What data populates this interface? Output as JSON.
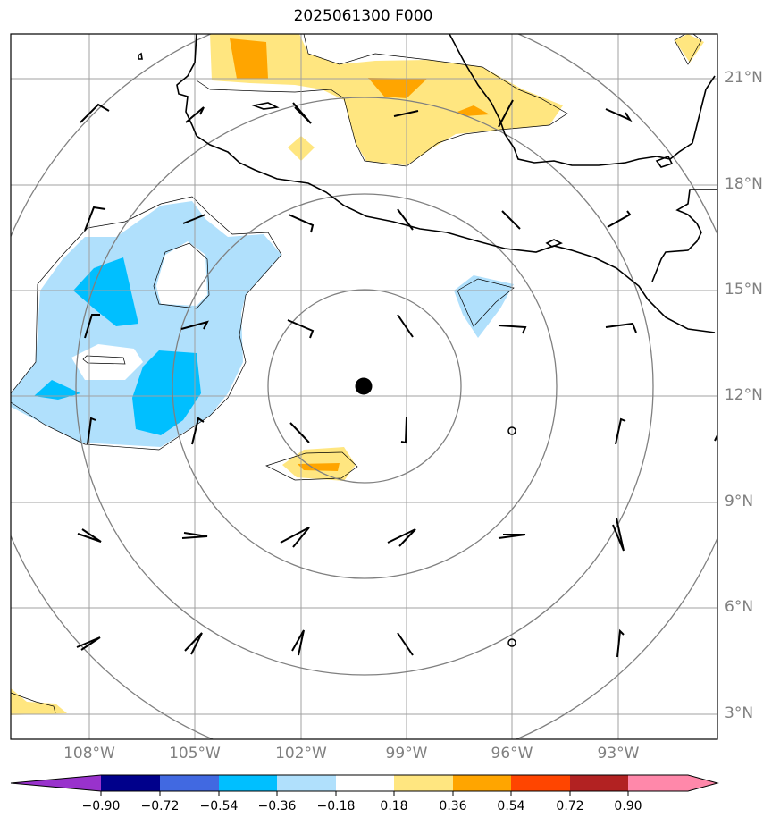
{
  "title": "2025061300 F000",
  "lat_labels": [
    "21°N",
    "18°N",
    "15°N",
    "12°N",
    "9°N",
    "6°N",
    "3°N"
  ],
  "lon_labels": [
    "108°W",
    "105°W",
    "102°W",
    "99°W",
    "96°W",
    "93°W"
  ],
  "colorbar": {
    "labels": [
      "−0.90",
      "−0.72",
      "−0.54",
      "−0.36",
      "−0.18",
      "0.18",
      "0.36",
      "0.54",
      "0.72",
      "0.90"
    ],
    "colors": [
      "#9932cc",
      "#00008b",
      "#4169e1",
      "#00bfff",
      "#b0e0fc",
      "#ffffff",
      "#ffe680",
      "#ffa500",
      "#ff4500",
      "#b22222",
      "#ff88aa"
    ]
  },
  "field_colors": {
    "neg_light": "#b0e0fc",
    "neg_mid": "#00bfff",
    "pos_light": "#ffe680",
    "pos_mid": "#ffa500",
    "grid": "#a0a0a0",
    "range_rings": "#808080",
    "coastline": "#000000",
    "center_marker": "#000000"
  },
  "chart_data": {
    "type": "map",
    "title": "2025061300 F000",
    "lat_range": [
      2.3,
      22.3
    ],
    "lon_range": [
      -110.2,
      -90.2
    ],
    "lat_ticks": [
      21,
      18,
      15,
      12,
      9,
      6,
      3
    ],
    "lon_ticks": [
      -108,
      -105,
      -102,
      -99,
      -96,
      -93
    ],
    "center": {
      "lat": 12.2,
      "lon": -100.3
    },
    "colorbar_levels": [
      -0.9,
      -0.72,
      -0.54,
      -0.36,
      -0.18,
      0.18,
      0.36,
      0.54,
      0.72,
      0.9
    ],
    "grid": true
  }
}
